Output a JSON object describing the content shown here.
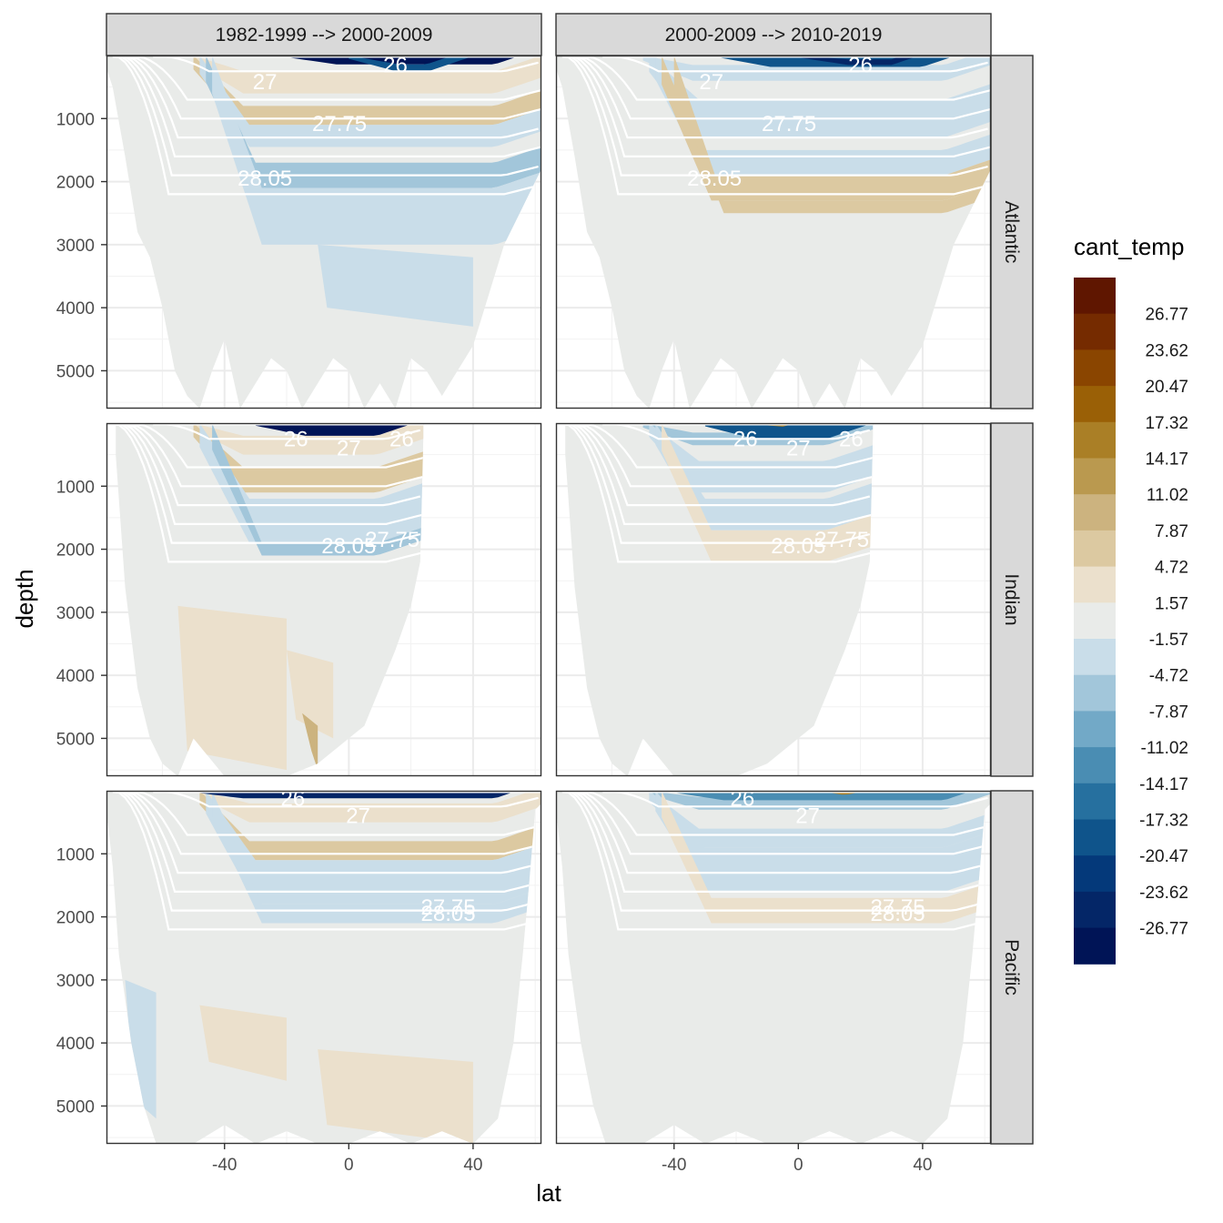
{
  "chart_data": {
    "type": "heatmap",
    "title": "",
    "xlabel": "lat",
    "ylabel": "depth",
    "x_ticks": [
      -40,
      0,
      40
    ],
    "y_ticks": [
      1000,
      2000,
      3000,
      4000,
      5000
    ],
    "xlim": [
      -78,
      62
    ],
    "ylim_reversed": [
      0,
      5600
    ],
    "columns": [
      "1982-1999 --> 2000-2009",
      "2000-2009 --> 2010-2019"
    ],
    "rows": [
      "Atlantic",
      "Indian",
      "Pacific"
    ],
    "legend": {
      "title": "cant_temp",
      "breaks": [
        "26.77",
        "23.62",
        "20.47",
        "17.32",
        "14.17",
        "11.02",
        "7.87",
        "4.72",
        "1.57",
        "-1.57",
        "-4.72",
        "-7.87",
        "-11.02",
        "-14.17",
        "-17.32",
        "-20.47",
        "-23.62",
        "-26.77"
      ],
      "colors": [
        "#5f1600",
        "#752b00",
        "#8a4500",
        "#9a6006",
        "#aa7f26",
        "#ba994f",
        "#ccb37f",
        "#dcc9a1",
        "#ebe0cc",
        "#e9ebe9",
        "#c9dde9",
        "#a2c6da",
        "#72a9c7",
        "#4a8db3",
        "#26709f",
        "#0f548b",
        "#04397a",
        "#042667",
        "#001456"
      ]
    },
    "isopycnal_labels": [
      "26",
      "27",
      "27.75",
      "28.05"
    ],
    "panels": [
      {
        "column": "1982-1999 --> 2000-2009",
        "row": "Atlantic",
        "labels": [
          {
            "text": "26",
            "lat": 15,
            "depth": 150
          },
          {
            "text": "27",
            "lat": -27,
            "depth": 420
          },
          {
            "text": "27.75",
            "lat": -3,
            "depth": 1080
          },
          {
            "text": "28.05",
            "lat": -27,
            "depth": 1950
          }
        ]
      },
      {
        "column": "2000-2009 --> 2010-2019",
        "row": "Atlantic",
        "labels": [
          {
            "text": "26",
            "lat": 20,
            "depth": 150
          },
          {
            "text": "27",
            "lat": -28,
            "depth": 420
          },
          {
            "text": "27.75",
            "lat": -3,
            "depth": 1080
          },
          {
            "text": "28.05",
            "lat": -27,
            "depth": 1950
          }
        ]
      },
      {
        "column": "1982-1999 --> 2000-2009",
        "row": "Indian",
        "labels": [
          {
            "text": "26",
            "lat": -17,
            "depth": 250
          },
          {
            "text": "27",
            "lat": 0,
            "depth": 400
          },
          {
            "text": "26",
            "lat": 17,
            "depth": 250
          },
          {
            "text": "27.75",
            "lat": 14,
            "depth": 1850
          },
          {
            "text": "28.05",
            "lat": 0,
            "depth": 1950
          }
        ]
      },
      {
        "column": "2000-2009 --> 2010-2019",
        "row": "Indian",
        "labels": [
          {
            "text": "26",
            "lat": -17,
            "depth": 250
          },
          {
            "text": "27",
            "lat": 0,
            "depth": 400
          },
          {
            "text": "26",
            "lat": 17,
            "depth": 250
          },
          {
            "text": "27.75",
            "lat": 14,
            "depth": 1850
          },
          {
            "text": "28.05",
            "lat": 0,
            "depth": 1950
          }
        ]
      },
      {
        "column": "1982-1999 --> 2000-2009",
        "row": "Pacific",
        "labels": [
          {
            "text": "26",
            "lat": -18,
            "depth": 120
          },
          {
            "text": "27",
            "lat": 3,
            "depth": 400
          },
          {
            "text": "27.75",
            "lat": 32,
            "depth": 1850
          },
          {
            "text": "28.05",
            "lat": 32,
            "depth": 1950
          }
        ]
      },
      {
        "column": "2000-2009 --> 2010-2019",
        "row": "Pacific",
        "labels": [
          {
            "text": "26",
            "lat": -18,
            "depth": 120
          },
          {
            "text": "27",
            "lat": 3,
            "depth": 400
          },
          {
            "text": "27.75",
            "lat": 32,
            "depth": 1850
          },
          {
            "text": "28.05",
            "lat": 32,
            "depth": 1950
          }
        ]
      }
    ]
  }
}
